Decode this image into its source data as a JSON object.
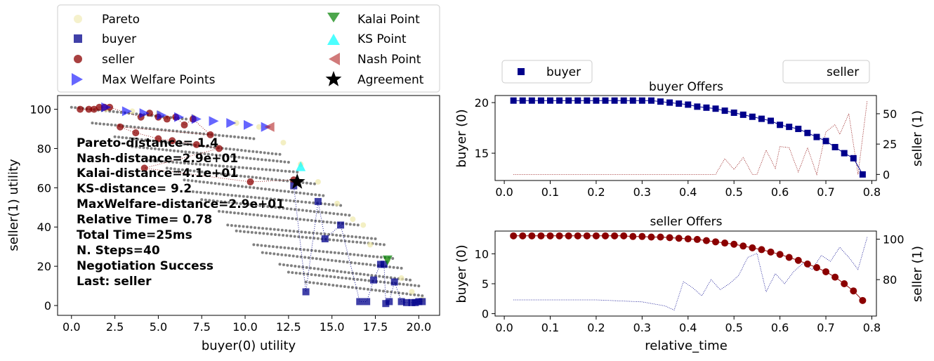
{
  "chart_data": [
    {
      "type": "scatter",
      "panel": "utility-space",
      "xlabel": "buyer(0) utility",
      "ylabel": "seller(1) utility",
      "xlim": [
        -0.8,
        21.2
      ],
      "ylim": [
        -5,
        107
      ],
      "xticks": [
        0.0,
        2.5,
        5.0,
        7.5,
        10.0,
        12.5,
        15.0,
        17.5,
        20.0
      ],
      "yticks": [
        0,
        20,
        40,
        60,
        80,
        100
      ],
      "legend_position": "top-left outside",
      "legend": [
        {
          "label": "Pareto",
          "marker": "circle",
          "color": "#eee8aa"
        },
        {
          "label": "buyer",
          "marker": "square",
          "color": "#00008b"
        },
        {
          "label": "seller",
          "marker": "circle",
          "color": "#8b0000"
        },
        {
          "label": "Max Welfare Points",
          "marker": "triangle-right",
          "color": "#0000ff"
        },
        {
          "label": "Kalai Point",
          "marker": "triangle-down",
          "color": "#008000"
        },
        {
          "label": "KS Point",
          "marker": "triangle-up",
          "color": "#00ffff"
        },
        {
          "label": "Nash Point",
          "marker": "triangle-left",
          "color": "#b22222"
        },
        {
          "label": "Agreement",
          "marker": "star",
          "color": "#000000"
        }
      ],
      "stats": [
        "Pareto-distance=  1.4",
        "Nash-distance=2.9e+01",
        "Kalai-distance=4.1e+01",
        "KS-distance=  9.2",
        "MaxWelfare-distance=2.9e+01",
        "Relative Time= 0.78",
        "Total Time=25ms",
        "N. Steps=40",
        "Negotiation Success",
        "Last: seller"
      ],
      "outcome_rows": [
        {
          "x0": 0.0,
          "x1": 6.6,
          "y0": 101,
          "y1": 95
        },
        {
          "x0": 1.2,
          "x1": 10.5,
          "y0": 93,
          "y1": 85
        },
        {
          "x0": 2.5,
          "x1": 12.0,
          "y0": 86,
          "y1": 77
        },
        {
          "x0": 3.5,
          "x1": 12.5,
          "y0": 81,
          "y1": 73
        },
        {
          "x0": 4.5,
          "x1": 13.0,
          "y0": 74,
          "y1": 68
        },
        {
          "x0": 5.5,
          "x1": 14.0,
          "y0": 70,
          "y1": 62
        },
        {
          "x0": 6.5,
          "x1": 14.5,
          "y0": 64,
          "y1": 56
        },
        {
          "x0": 7.0,
          "x1": 15.5,
          "y0": 58,
          "y1": 51
        },
        {
          "x0": 7.5,
          "x1": 16.0,
          "y0": 54,
          "y1": 46
        },
        {
          "x0": 8.5,
          "x1": 16.5,
          "y0": 48,
          "y1": 41
        },
        {
          "x0": 9.0,
          "x1": 17.5,
          "y0": 41,
          "y1": 34
        },
        {
          "x0": 9.5,
          "x1": 18.0,
          "y0": 38,
          "y1": 31
        },
        {
          "x0": 10.5,
          "x1": 18.5,
          "y0": 31,
          "y1": 24
        },
        {
          "x0": 11.0,
          "x1": 19.0,
          "y0": 27,
          "y1": 19
        },
        {
          "x0": 12.0,
          "x1": 19.5,
          "y0": 21,
          "y1": 13
        },
        {
          "x0": 12.5,
          "x1": 20.0,
          "y0": 17,
          "y1": 10
        },
        {
          "x0": 13.5,
          "x1": 20.2,
          "y0": 12,
          "y1": 5
        }
      ],
      "pareto": [
        [
          2.0,
          100
        ],
        [
          3.5,
          99
        ],
        [
          5.0,
          98
        ],
        [
          7.0,
          96
        ],
        [
          9.5,
          93
        ],
        [
          10.8,
          91
        ],
        [
          12.2,
          83
        ],
        [
          13.2,
          72
        ],
        [
          14.2,
          63
        ],
        [
          15.3,
          52
        ],
        [
          16.2,
          44
        ],
        [
          16.8,
          41
        ],
        [
          17.2,
          31
        ],
        [
          18.2,
          23
        ],
        [
          19.0,
          14
        ],
        [
          19.6,
          7
        ],
        [
          20.2,
          3
        ]
      ],
      "buyer_offers": [
        [
          20.2,
          2
        ],
        [
          20.0,
          2
        ],
        [
          19.8,
          1.5
        ],
        [
          19.6,
          1.5
        ],
        [
          19.3,
          1.5
        ],
        [
          19.0,
          2
        ],
        [
          18.6,
          12
        ],
        [
          18.3,
          2
        ],
        [
          18.1,
          1
        ],
        [
          18.0,
          21
        ],
        [
          17.8,
          21
        ],
        [
          17.4,
          13
        ],
        [
          17.0,
          2
        ],
        [
          16.6,
          2
        ],
        [
          15.5,
          41
        ],
        [
          14.6,
          34
        ],
        [
          14.2,
          53
        ],
        [
          13.5,
          7
        ],
        [
          12.8,
          61
        ]
      ],
      "seller_offers": [
        [
          0.5,
          100
        ],
        [
          1.0,
          100
        ],
        [
          1.3,
          100
        ],
        [
          1.6,
          101
        ],
        [
          1.9,
          101
        ],
        [
          2.2,
          101
        ],
        [
          4.0,
          96
        ],
        [
          4.5,
          98
        ],
        [
          5.0,
          96
        ],
        [
          5.5,
          95
        ],
        [
          6.0,
          96
        ],
        [
          6.5,
          92
        ],
        [
          7.0,
          95
        ],
        [
          8.0,
          87
        ],
        [
          2.8,
          91
        ],
        [
          3.7,
          88
        ],
        [
          5.0,
          85
        ],
        [
          5.8,
          84
        ],
        [
          7.2,
          82
        ],
        [
          8.5,
          80
        ],
        [
          4.2,
          70
        ],
        [
          10.3,
          63
        ],
        [
          12.8,
          64
        ]
      ],
      "max_welfare_points": [
        [
          2.0,
          101
        ],
        [
          3.2,
          99
        ],
        [
          4.2,
          98
        ],
        [
          5.2,
          97
        ],
        [
          6.2,
          96
        ],
        [
          7.2,
          95
        ],
        [
          8.2,
          94
        ],
        [
          9.2,
          93
        ],
        [
          10.2,
          92
        ],
        [
          11.2,
          91
        ]
      ],
      "kalai_point": [
        18.2,
        23
      ],
      "ks_point": [
        13.2,
        71
      ],
      "nash_point": [
        11.4,
        91
      ],
      "agreement": [
        13.0,
        63
      ]
    },
    {
      "type": "line",
      "panel": "buyer-offers",
      "title": "buyer Offers",
      "xlabel": "",
      "ylabel": "buyer (0)",
      "y2label": "seller (1)",
      "xlim": [
        -0.02,
        0.81
      ],
      "ylim": [
        12.3,
        20.7
      ],
      "y2lim": [
        -5,
        65
      ],
      "xticks": [
        0.0,
        0.1,
        0.2,
        0.3,
        0.4,
        0.5,
        0.6,
        0.7,
        0.8
      ],
      "yticks": [
        15,
        20
      ],
      "y2ticks": [
        0,
        25,
        50
      ],
      "legend": [
        {
          "label": "buyer",
          "marker": "square",
          "color": "#00008b"
        }
      ],
      "series": [
        {
          "name": "buyer",
          "axis": "left",
          "marker": "square",
          "color": "#00008b",
          "x": [
            0.02,
            0.04,
            0.06,
            0.08,
            0.1,
            0.12,
            0.14,
            0.16,
            0.18,
            0.2,
            0.22,
            0.24,
            0.26,
            0.28,
            0.3,
            0.32,
            0.34,
            0.36,
            0.38,
            0.4,
            0.42,
            0.44,
            0.46,
            0.48,
            0.5,
            0.52,
            0.54,
            0.56,
            0.58,
            0.6,
            0.62,
            0.64,
            0.66,
            0.68,
            0.7,
            0.72,
            0.74,
            0.76,
            0.78
          ],
          "y": [
            20.2,
            20.2,
            20.2,
            20.2,
            20.2,
            20.2,
            20.2,
            20.2,
            20.2,
            20.2,
            20.2,
            20.2,
            20.2,
            20.2,
            20.2,
            20.2,
            20.1,
            20.0,
            19.9,
            19.8,
            19.6,
            19.5,
            19.4,
            19.2,
            19.0,
            18.8,
            18.6,
            18.4,
            18.2,
            17.8,
            17.6,
            17.4,
            17.0,
            16.6,
            16.2,
            15.6,
            15.0,
            14.5,
            12.9
          ]
        },
        {
          "name": "",
          "axis": "right",
          "line": "dotted",
          "color": "#8b0000",
          "x": [
            0.02,
            0.1,
            0.2,
            0.3,
            0.4,
            0.46,
            0.48,
            0.5,
            0.52,
            0.54,
            0.55,
            0.57,
            0.59,
            0.6,
            0.62,
            0.64,
            0.66,
            0.68,
            0.7,
            0.72,
            0.73,
            0.75,
            0.77,
            0.79
          ],
          "y": [
            0,
            0,
            0,
            0,
            0,
            0,
            13,
            4,
            14,
            0,
            0,
            20,
            5,
            23,
            22,
            2,
            22,
            0,
            35,
            41,
            33,
            50,
            0,
            61
          ]
        }
      ]
    },
    {
      "type": "line",
      "panel": "seller-offers",
      "title": "seller Offers",
      "xlabel": "relative_time",
      "ylabel": "buyer (0)",
      "y2label": "seller (1)",
      "xlim": [
        -0.02,
        0.81
      ],
      "ylim": [
        -0.4,
        13.8
      ],
      "y2lim": [
        62,
        104
      ],
      "xticks": [
        0.0,
        0.1,
        0.2,
        0.3,
        0.4,
        0.5,
        0.6,
        0.7,
        0.8
      ],
      "yticks": [
        0,
        5,
        10
      ],
      "y2ticks": [
        80,
        100
      ],
      "legend": [
        {
          "label": "seller",
          "marker": "none",
          "color": "#8b0000"
        }
      ],
      "series": [
        {
          "name": "seller",
          "axis": "left",
          "marker": "circle",
          "color": "#8b0000",
          "x": [
            0.02,
            0.04,
            0.06,
            0.08,
            0.1,
            0.12,
            0.14,
            0.16,
            0.18,
            0.2,
            0.22,
            0.24,
            0.26,
            0.28,
            0.3,
            0.32,
            0.34,
            0.36,
            0.38,
            0.4,
            0.42,
            0.44,
            0.46,
            0.48,
            0.5,
            0.52,
            0.54,
            0.56,
            0.58,
            0.6,
            0.62,
            0.64,
            0.66,
            0.68,
            0.7,
            0.72,
            0.74,
            0.76,
            0.78
          ],
          "y": [
            13.0,
            13.0,
            13.0,
            13.0,
            13.0,
            13.0,
            13.0,
            13.0,
            13.0,
            13.0,
            13.0,
            13.0,
            13.0,
            12.9,
            12.9,
            12.8,
            12.8,
            12.7,
            12.6,
            12.5,
            12.4,
            12.2,
            12.0,
            11.8,
            11.6,
            11.3,
            11.0,
            10.7,
            10.3,
            9.9,
            9.4,
            8.9,
            8.3,
            7.7,
            7.0,
            6.1,
            5.0,
            3.8,
            2.2
          ]
        },
        {
          "name": "",
          "axis": "right",
          "line": "dotted",
          "color": "#00008b",
          "x": [
            0.02,
            0.1,
            0.2,
            0.3,
            0.35,
            0.37,
            0.39,
            0.41,
            0.43,
            0.45,
            0.47,
            0.49,
            0.51,
            0.53,
            0.55,
            0.57,
            0.59,
            0.61,
            0.63,
            0.65,
            0.67,
            0.69,
            0.71,
            0.73,
            0.75,
            0.77,
            0.79
          ],
          "y": [
            70,
            70,
            70,
            69,
            67,
            65,
            79,
            76,
            72,
            80,
            75,
            78,
            82,
            91,
            93,
            74,
            83,
            78,
            84,
            88,
            85,
            92,
            89,
            96,
            91,
            85,
            101
          ]
        }
      ]
    }
  ]
}
